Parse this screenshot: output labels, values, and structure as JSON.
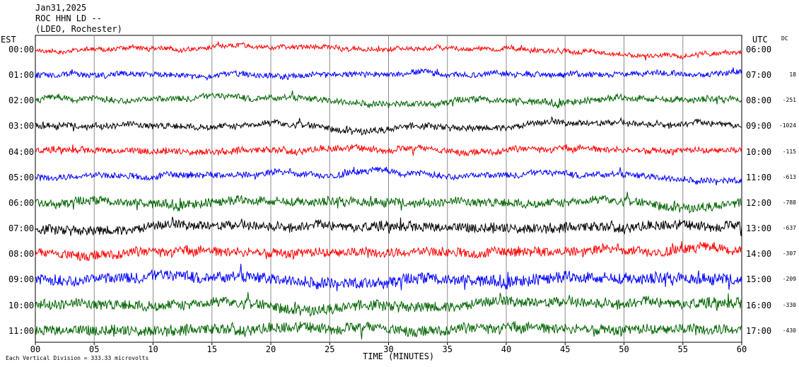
{
  "header": {
    "date": "Jan31,2025",
    "station": "ROC HHN LD --",
    "network": "(LDEO, Rochester)"
  },
  "left_label": "EST",
  "right_label": "UTC",
  "dc_label": "DC",
  "footer": {
    "division": "Each Vertical Division = 333.33 microvolts"
  },
  "chart_data": {
    "type": "line",
    "title": "",
    "xlabel": "TIME (MINUTES)",
    "xlim": [
      0,
      60
    ],
    "x_ticks": [
      "00",
      "05",
      "10",
      "15",
      "20",
      "25",
      "30",
      "35",
      "40",
      "45",
      "50",
      "55",
      "60"
    ],
    "rows": [
      {
        "est": "00:00",
        "utc": "06:00",
        "dc": "",
        "color": "#ff0000",
        "activity": 0.5
      },
      {
        "est": "01:00",
        "utc": "07:00",
        "dc": "18",
        "color": "#0000ff",
        "activity": 0.6
      },
      {
        "est": "02:00",
        "utc": "08:00",
        "dc": "-251",
        "color": "#006400",
        "activity": 0.7
      },
      {
        "est": "03:00",
        "utc": "09:00",
        "dc": "-1024",
        "color": "#000000",
        "activity": 0.7
      },
      {
        "est": "04:00",
        "utc": "10:00",
        "dc": "-115",
        "color": "#ff0000",
        "activity": 0.7
      },
      {
        "est": "05:00",
        "utc": "11:00",
        "dc": "-613",
        "color": "#0000ff",
        "activity": 0.7
      },
      {
        "est": "06:00",
        "utc": "12:00",
        "dc": "-788",
        "color": "#006400",
        "activity": 1.0
      },
      {
        "est": "07:00",
        "utc": "13:00",
        "dc": "-637",
        "color": "#000000",
        "activity": 1.1
      },
      {
        "est": "08:00",
        "utc": "14:00",
        "dc": "-307",
        "color": "#ff0000",
        "activity": 1.1
      },
      {
        "est": "09:00",
        "utc": "15:00",
        "dc": "-209",
        "color": "#0000ff",
        "activity": 1.3
      },
      {
        "est": "10:00",
        "utc": "16:00",
        "dc": "-330",
        "color": "#006400",
        "activity": 1.2
      },
      {
        "est": "11:00",
        "utc": "17:00",
        "dc": "-430",
        "color": "#006400",
        "activity": 1.2
      }
    ],
    "grid": true
  }
}
